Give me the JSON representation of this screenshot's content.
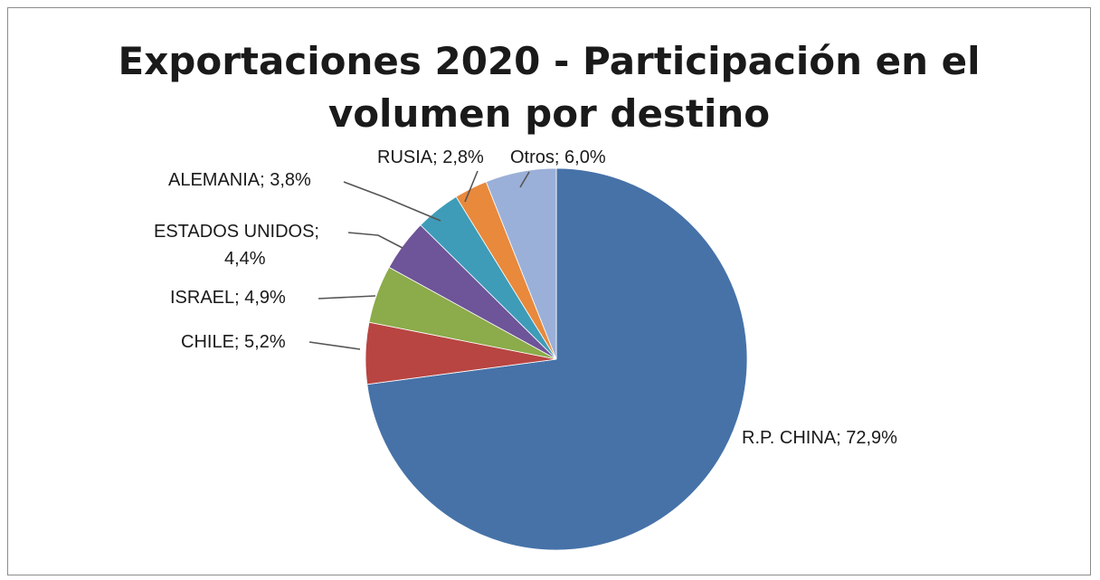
{
  "chart_data": {
    "type": "pie",
    "title": "Exportaciones 2020 - Participación en el volumen por destino",
    "title_lines": [
      "Exportaciones 2020 - Participación en el",
      "volumen por destino"
    ],
    "start_angle_deg": 0,
    "direction": "clockwise",
    "legend": "none",
    "slices": [
      {
        "name": "R.P. CHINA",
        "value": 72.9,
        "label": "R.P. CHINA; 72,9%",
        "label_lines": [
          "R.P. CHINA; 72,9%"
        ],
        "color": "#4672a8"
      },
      {
        "name": "CHILE",
        "value": 5.2,
        "label": "CHILE; 5,2%",
        "label_lines": [
          "CHILE; 5,2%"
        ],
        "color": "#b84542"
      },
      {
        "name": "ISRAEL",
        "value": 4.9,
        "label": "ISRAEL; 4,9%",
        "label_lines": [
          "ISRAEL; 4,9%"
        ],
        "color": "#8cab4a"
      },
      {
        "name": "ESTADOS UNIDOS",
        "value": 4.4,
        "label": "ESTADOS UNIDOS; 4,4%",
        "label_lines": [
          "ESTADOS UNIDOS;",
          "4,4%"
        ],
        "color": "#6e5498"
      },
      {
        "name": "ALEMANIA",
        "value": 3.8,
        "label": "ALEMANIA; 3,8%",
        "label_lines": [
          "ALEMANIA; 3,8%"
        ],
        "color": "#3e9cb8"
      },
      {
        "name": "RUSIA",
        "value": 2.8,
        "label": "RUSIA; 2,8%",
        "label_lines": [
          "RUSIA; 2,8%"
        ],
        "color": "#e8893c"
      },
      {
        "name": "Otros",
        "value": 6.0,
        "label": "Otros; 6,0%",
        "label_lines": [
          "Otros; 6,0%"
        ],
        "color": "#9bb0d8"
      }
    ]
  }
}
